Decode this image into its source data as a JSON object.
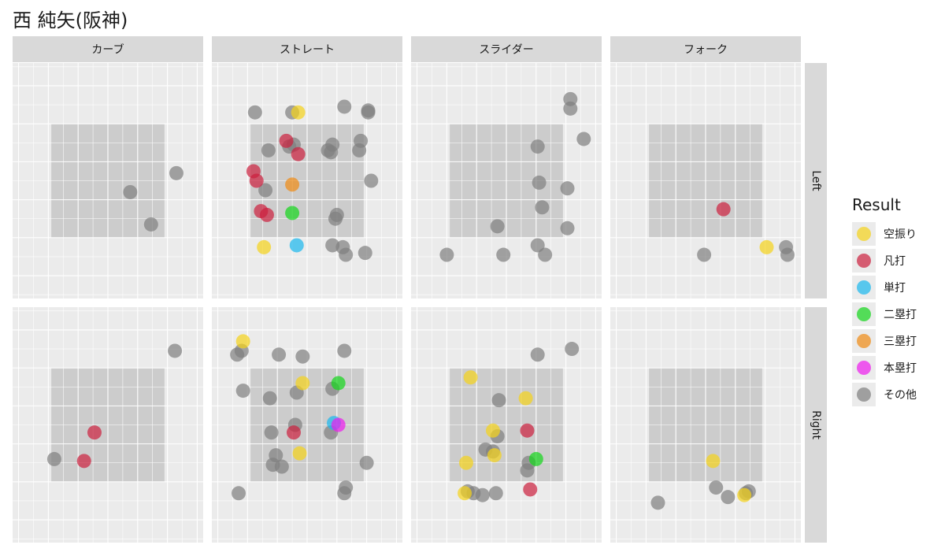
{
  "title": "西 純矢(阪神)",
  "colors": {
    "panel_bg": "#ebebeb",
    "strip_bg": "#d9d9d9",
    "zone": "#cccccc",
    "grid": "#ffffff"
  },
  "legend": {
    "title": "Result",
    "items": [
      {
        "label": "空振り",
        "color": "#f5d31a"
      },
      {
        "label": "凡打",
        "color": "#cc1f3d"
      },
      {
        "label": "単打",
        "color": "#1ab8ee"
      },
      {
        "label": "二塁打",
        "color": "#12d61a"
      },
      {
        "label": "三塁打",
        "color": "#f08a12"
      },
      {
        "label": "本塁打",
        "color": "#ee1aee"
      },
      {
        "label": "その他",
        "color": "#7f7f7f"
      }
    ]
  },
  "chart_data": {
    "type": "scatter",
    "facet_cols": [
      "カーブ",
      "ストレート",
      "スライダー",
      "フォーク"
    ],
    "facet_rows": [
      "Left",
      "Right"
    ],
    "xlim": [
      -3.2,
      3.2
    ],
    "ylim": [
      -1.6,
      4.6
    ],
    "strike_zone": {
      "x": [
        -1.9,
        1.9
      ],
      "y": [
        0,
        3
      ]
    },
    "points": [
      {
        "col": 0,
        "row": 0,
        "x": 2.3,
        "y": 1.7,
        "result": "その他"
      },
      {
        "col": 0,
        "row": 0,
        "x": 0.75,
        "y": 1.2,
        "result": "その他"
      },
      {
        "col": 0,
        "row": 0,
        "x": 1.45,
        "y": 0.35,
        "result": "その他"
      },
      {
        "col": 1,
        "row": 0,
        "x": -1.75,
        "y": 3.3,
        "result": "その他"
      },
      {
        "col": 1,
        "row": 0,
        "x": -0.3,
        "y": 3.3,
        "result": "空振り"
      },
      {
        "col": 1,
        "row": 0,
        "x": -0.5,
        "y": 3.3,
        "result": "その他"
      },
      {
        "col": 1,
        "row": 0,
        "x": 1.25,
        "y": 3.45,
        "result": "その他"
      },
      {
        "col": 1,
        "row": 0,
        "x": 2.05,
        "y": 3.35,
        "result": "その他"
      },
      {
        "col": 1,
        "row": 0,
        "x": 2.05,
        "y": 3.3,
        "result": "その他"
      },
      {
        "col": 1,
        "row": 0,
        "x": -1.3,
        "y": 2.3,
        "result": "その他"
      },
      {
        "col": 1,
        "row": 0,
        "x": -0.7,
        "y": 2.55,
        "result": "凡打"
      },
      {
        "col": 1,
        "row": 0,
        "x": -0.6,
        "y": 2.4,
        "result": "その他"
      },
      {
        "col": 1,
        "row": 0,
        "x": -0.45,
        "y": 2.45,
        "result": "その他"
      },
      {
        "col": 1,
        "row": 0,
        "x": -0.3,
        "y": 2.2,
        "result": "凡打"
      },
      {
        "col": 1,
        "row": 0,
        "x": 0.85,
        "y": 2.45,
        "result": "その他"
      },
      {
        "col": 1,
        "row": 0,
        "x": 0.7,
        "y": 2.3,
        "result": "その他"
      },
      {
        "col": 1,
        "row": 0,
        "x": 0.8,
        "y": 2.25,
        "result": "その他"
      },
      {
        "col": 1,
        "row": 0,
        "x": 1.8,
        "y": 2.55,
        "result": "その他"
      },
      {
        "col": 1,
        "row": 0,
        "x": 1.75,
        "y": 2.3,
        "result": "その他"
      },
      {
        "col": 1,
        "row": 0,
        "x": -1.8,
        "y": 1.75,
        "result": "凡打"
      },
      {
        "col": 1,
        "row": 0,
        "x": -1.7,
        "y": 1.5,
        "result": "凡打"
      },
      {
        "col": 1,
        "row": 0,
        "x": -1.4,
        "y": 1.25,
        "result": "その他"
      },
      {
        "col": 1,
        "row": 0,
        "x": -0.5,
        "y": 1.4,
        "result": "三塁打"
      },
      {
        "col": 1,
        "row": 0,
        "x": 2.15,
        "y": 1.5,
        "result": "その他"
      },
      {
        "col": 1,
        "row": 0,
        "x": -1.55,
        "y": 0.7,
        "result": "凡打"
      },
      {
        "col": 1,
        "row": 0,
        "x": -1.35,
        "y": 0.6,
        "result": "凡打"
      },
      {
        "col": 1,
        "row": 0,
        "x": -0.5,
        "y": 0.65,
        "result": "二塁打"
      },
      {
        "col": 1,
        "row": 0,
        "x": 1.0,
        "y": 0.6,
        "result": "その他"
      },
      {
        "col": 1,
        "row": 0,
        "x": 0.95,
        "y": 0.5,
        "result": "その他"
      },
      {
        "col": 1,
        "row": 0,
        "x": -1.45,
        "y": -0.25,
        "result": "空振り"
      },
      {
        "col": 1,
        "row": 0,
        "x": -0.35,
        "y": -0.2,
        "result": "単打"
      },
      {
        "col": 1,
        "row": 0,
        "x": 0.85,
        "y": -0.2,
        "result": "その他"
      },
      {
        "col": 1,
        "row": 0,
        "x": 1.2,
        "y": -0.25,
        "result": "その他"
      },
      {
        "col": 1,
        "row": 0,
        "x": 1.3,
        "y": -0.45,
        "result": "その他"
      },
      {
        "col": 1,
        "row": 0,
        "x": 1.95,
        "y": -0.4,
        "result": "その他"
      },
      {
        "col": 2,
        "row": 0,
        "x": 2.15,
        "y": 3.65,
        "result": "その他"
      },
      {
        "col": 2,
        "row": 0,
        "x": 2.15,
        "y": 3.4,
        "result": "その他"
      },
      {
        "col": 2,
        "row": 0,
        "x": 2.6,
        "y": 2.6,
        "result": "その他"
      },
      {
        "col": 2,
        "row": 0,
        "x": 1.05,
        "y": 2.4,
        "result": "その他"
      },
      {
        "col": 2,
        "row": 0,
        "x": 1.1,
        "y": 1.45,
        "result": "その他"
      },
      {
        "col": 2,
        "row": 0,
        "x": 2.05,
        "y": 1.3,
        "result": "その他"
      },
      {
        "col": 2,
        "row": 0,
        "x": 1.2,
        "y": 0.8,
        "result": "その他"
      },
      {
        "col": 2,
        "row": 0,
        "x": -0.3,
        "y": 0.3,
        "result": "その他"
      },
      {
        "col": 2,
        "row": 0,
        "x": 2.05,
        "y": 0.25,
        "result": "その他"
      },
      {
        "col": 2,
        "row": 0,
        "x": 1.05,
        "y": -0.2,
        "result": "その他"
      },
      {
        "col": 2,
        "row": 0,
        "x": -2.0,
        "y": -0.45,
        "result": "その他"
      },
      {
        "col": 2,
        "row": 0,
        "x": -0.1,
        "y": -0.45,
        "result": "その他"
      },
      {
        "col": 2,
        "row": 0,
        "x": 1.3,
        "y": -0.45,
        "result": "その他"
      },
      {
        "col": 3,
        "row": 0,
        "x": 0.6,
        "y": 0.75,
        "result": "凡打"
      },
      {
        "col": 3,
        "row": 0,
        "x": 2.05,
        "y": -0.25,
        "result": "空振り"
      },
      {
        "col": 3,
        "row": 0,
        "x": 2.7,
        "y": -0.25,
        "result": "その他"
      },
      {
        "col": 3,
        "row": 0,
        "x": 2.75,
        "y": -0.45,
        "result": "その他"
      },
      {
        "col": 3,
        "row": 0,
        "x": -0.05,
        "y": -0.45,
        "result": "その他"
      },
      {
        "col": 0,
        "row": 1,
        "x": 2.25,
        "y": 3.45,
        "result": "その他"
      },
      {
        "col": 0,
        "row": 1,
        "x": -0.45,
        "y": 1.3,
        "result": "凡打"
      },
      {
        "col": 0,
        "row": 1,
        "x": -1.8,
        "y": 0.6,
        "result": "その他"
      },
      {
        "col": 0,
        "row": 1,
        "x": -0.8,
        "y": 0.55,
        "result": "凡打"
      },
      {
        "col": 1,
        "row": 1,
        "x": -2.15,
        "y": 3.7,
        "result": "空振り"
      },
      {
        "col": 1,
        "row": 1,
        "x": -2.2,
        "y": 3.45,
        "result": "その他"
      },
      {
        "col": 1,
        "row": 1,
        "x": -2.35,
        "y": 3.35,
        "result": "その他"
      },
      {
        "col": 1,
        "row": 1,
        "x": -0.95,
        "y": 3.35,
        "result": "その他"
      },
      {
        "col": 1,
        "row": 1,
        "x": -0.15,
        "y": 3.3,
        "result": "その他"
      },
      {
        "col": 1,
        "row": 1,
        "x": 1.25,
        "y": 3.45,
        "result": "その他"
      },
      {
        "col": 1,
        "row": 1,
        "x": -0.15,
        "y": 2.6,
        "result": "空振り"
      },
      {
        "col": 1,
        "row": 1,
        "x": 1.05,
        "y": 2.6,
        "result": "二塁打"
      },
      {
        "col": 1,
        "row": 1,
        "x": 0.85,
        "y": 2.45,
        "result": "その他"
      },
      {
        "col": 1,
        "row": 1,
        "x": -2.15,
        "y": 2.4,
        "result": "その他"
      },
      {
        "col": 1,
        "row": 1,
        "x": -0.35,
        "y": 2.35,
        "result": "その他"
      },
      {
        "col": 1,
        "row": 1,
        "x": -1.25,
        "y": 2.2,
        "result": "その他"
      },
      {
        "col": 1,
        "row": 1,
        "x": 0.9,
        "y": 1.55,
        "result": "単打"
      },
      {
        "col": 1,
        "row": 1,
        "x": 1.05,
        "y": 1.5,
        "result": "本塁打"
      },
      {
        "col": 1,
        "row": 1,
        "x": -0.4,
        "y": 1.5,
        "result": "その他"
      },
      {
        "col": 1,
        "row": 1,
        "x": 0.8,
        "y": 1.3,
        "result": "その他"
      },
      {
        "col": 1,
        "row": 1,
        "x": -0.45,
        "y": 1.3,
        "result": "凡打"
      },
      {
        "col": 1,
        "row": 1,
        "x": -1.2,
        "y": 1.3,
        "result": "その他"
      },
      {
        "col": 1,
        "row": 1,
        "x": -0.25,
        "y": 0.75,
        "result": "空振り"
      },
      {
        "col": 1,
        "row": 1,
        "x": -1.05,
        "y": 0.7,
        "result": "その他"
      },
      {
        "col": 1,
        "row": 1,
        "x": -1.15,
        "y": 0.45,
        "result": "その他"
      },
      {
        "col": 1,
        "row": 1,
        "x": -0.85,
        "y": 0.4,
        "result": "その他"
      },
      {
        "col": 1,
        "row": 1,
        "x": 2.0,
        "y": 0.5,
        "result": "その他"
      },
      {
        "col": 1,
        "row": 1,
        "x": 1.3,
        "y": -0.15,
        "result": "その他"
      },
      {
        "col": 1,
        "row": 1,
        "x": 1.25,
        "y": -0.3,
        "result": "その他"
      },
      {
        "col": 1,
        "row": 1,
        "x": -2.3,
        "y": -0.3,
        "result": "その他"
      },
      {
        "col": 2,
        "row": 1,
        "x": 2.2,
        "y": 3.5,
        "result": "その他"
      },
      {
        "col": 2,
        "row": 1,
        "x": 1.05,
        "y": 3.35,
        "result": "その他"
      },
      {
        "col": 2,
        "row": 1,
        "x": -1.2,
        "y": 2.75,
        "result": "空振り"
      },
      {
        "col": 2,
        "row": 1,
        "x": -0.25,
        "y": 2.15,
        "result": "その他"
      },
      {
        "col": 2,
        "row": 1,
        "x": 0.65,
        "y": 2.2,
        "result": "空振り"
      },
      {
        "col": 2,
        "row": 1,
        "x": -0.45,
        "y": 1.35,
        "result": "空振り"
      },
      {
        "col": 2,
        "row": 1,
        "x": -0.3,
        "y": 1.2,
        "result": "その他"
      },
      {
        "col": 2,
        "row": 1,
        "x": 0.7,
        "y": 1.35,
        "result": "凡打"
      },
      {
        "col": 2,
        "row": 1,
        "x": -0.7,
        "y": 0.85,
        "result": "その他"
      },
      {
        "col": 2,
        "row": 1,
        "x": -0.45,
        "y": 0.8,
        "result": "その他"
      },
      {
        "col": 2,
        "row": 1,
        "x": -0.4,
        "y": 0.7,
        "result": "空振り"
      },
      {
        "col": 2,
        "row": 1,
        "x": 1.0,
        "y": 0.6,
        "result": "二塁打"
      },
      {
        "col": 2,
        "row": 1,
        "x": 0.75,
        "y": 0.5,
        "result": "その他"
      },
      {
        "col": 2,
        "row": 1,
        "x": 0.7,
        "y": 0.3,
        "result": "その他"
      },
      {
        "col": 2,
        "row": 1,
        "x": -1.35,
        "y": 0.5,
        "result": "空振り"
      },
      {
        "col": 2,
        "row": 1,
        "x": -1.3,
        "y": -0.25,
        "result": "その他"
      },
      {
        "col": 2,
        "row": 1,
        "x": -1.4,
        "y": -0.3,
        "result": "空振り"
      },
      {
        "col": 2,
        "row": 1,
        "x": -1.1,
        "y": -0.3,
        "result": "その他"
      },
      {
        "col": 2,
        "row": 1,
        "x": -0.8,
        "y": -0.35,
        "result": "その他"
      },
      {
        "col": 2,
        "row": 1,
        "x": -0.35,
        "y": -0.3,
        "result": "その他"
      },
      {
        "col": 2,
        "row": 1,
        "x": 0.8,
        "y": -0.2,
        "result": "凡打"
      },
      {
        "col": 3,
        "row": 1,
        "x": 0.25,
        "y": 0.55,
        "result": "空振り"
      },
      {
        "col": 3,
        "row": 1,
        "x": 0.35,
        "y": -0.15,
        "result": "その他"
      },
      {
        "col": 3,
        "row": 1,
        "x": 0.75,
        "y": -0.4,
        "result": "その他"
      },
      {
        "col": 3,
        "row": 1,
        "x": 1.45,
        "y": -0.25,
        "result": "その他"
      },
      {
        "col": 3,
        "row": 1,
        "x": 1.3,
        "y": -0.35,
        "result": "空振り"
      },
      {
        "col": 3,
        "row": 1,
        "x": 1.35,
        "y": -0.3,
        "result": "その他"
      },
      {
        "col": 3,
        "row": 1,
        "x": -1.6,
        "y": -0.55,
        "result": "その他"
      }
    ]
  }
}
